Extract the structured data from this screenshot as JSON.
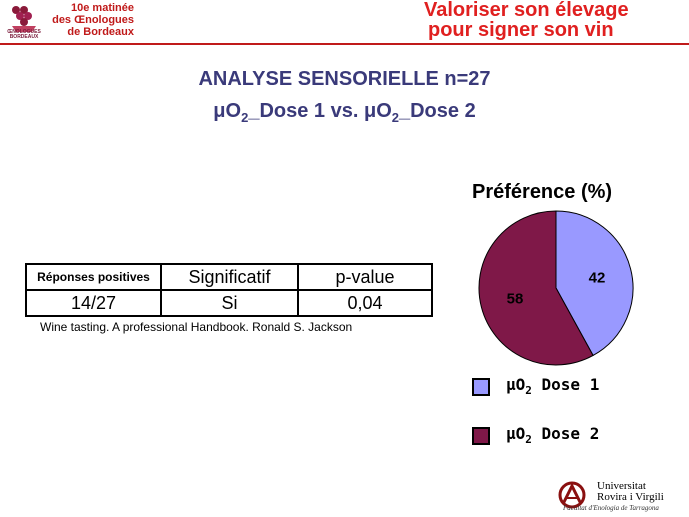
{
  "header": {
    "logo_caption": "ŒNOLOGUES BORDEAUX",
    "event_line1": "10e matinée",
    "event_line2": "des Œnologues",
    "event_line3": "de Bordeaux",
    "slogan_line1": "Valoriser son élevage",
    "slogan_line2": "pour signer son vin"
  },
  "title_line1": "ANALYSE SENSORIELLE  n=27",
  "title_line2": {
    "part1": "μO",
    "sub1": "2",
    "part2": "_Dose 1 vs. μO",
    "sub2": "2",
    "part3": "_Dose 2"
  },
  "stats_table": {
    "headers": [
      "Réponses positives",
      "Significatif",
      "p-value"
    ],
    "row": [
      "14/27",
      "Si",
      "0,04"
    ]
  },
  "source": "Wine tasting. A professional Handbook. Ronald S. Jackson",
  "chart_data": {
    "type": "pie",
    "title": "Préférence (%)",
    "slices": [
      {
        "name": "μO2 Dose 1",
        "value": 42,
        "color": "#9999ff"
      },
      {
        "name": "μO2 Dose 2",
        "value": 58,
        "color": "#7f1848"
      }
    ],
    "legend_position": "bottom"
  },
  "legend": [
    {
      "prefix": "μO",
      "sub": "2",
      "suffix": " Dose 1"
    },
    {
      "prefix": "μO",
      "sub": "2",
      "suffix": " Dose 2"
    }
  ],
  "footer": {
    "university_line1": "Universitat",
    "university_line2": "Rovira i Virgili",
    "faculty": "Facultat d'Enologia de Tarragona"
  }
}
